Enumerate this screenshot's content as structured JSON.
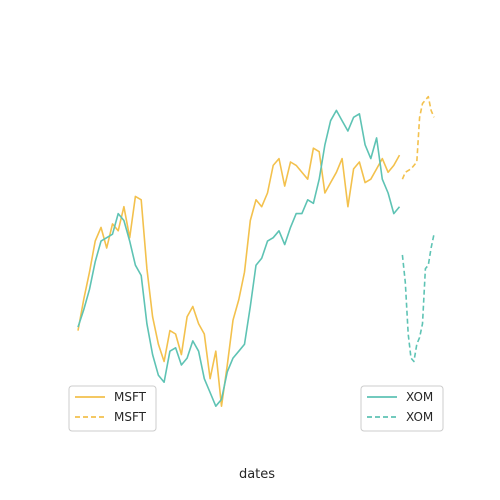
{
  "chart_data": {
    "type": "line",
    "xlabel": "dates",
    "ylabel": "",
    "xlim": [
      0,
      120
    ],
    "ylim": [
      0,
      100
    ],
    "grid": false,
    "axes_visible": false,
    "colors": {
      "MSFT": "#f3c14d",
      "XOM": "#5ec3b4"
    },
    "series": [
      {
        "name": "MSFT",
        "style": "solid",
        "color": "#f3c14d",
        "x": [
          0,
          2,
          4,
          6,
          8,
          10,
          12,
          14,
          16,
          18,
          20,
          22,
          24,
          26,
          28,
          30,
          32,
          34,
          36,
          38,
          40,
          42,
          44,
          46,
          48,
          50,
          52,
          54,
          56,
          58,
          60,
          62,
          64,
          66,
          68,
          70,
          72,
          74,
          76,
          78,
          80,
          82,
          84,
          86,
          88,
          90,
          92,
          94,
          96,
          98,
          100,
          102,
          104,
          106,
          108,
          110,
          112
        ],
        "y": [
          26,
          35,
          43,
          52,
          56,
          50,
          57,
          55,
          62,
          53,
          65,
          64,
          44,
          30,
          22,
          17,
          26,
          25,
          19,
          30,
          33,
          28,
          25,
          12,
          20,
          4,
          16,
          29,
          35,
          43,
          58,
          64,
          62,
          66,
          74,
          76,
          68,
          75,
          74,
          72,
          70,
          79,
          78,
          66,
          69,
          72,
          76,
          62,
          73,
          75,
          69,
          70,
          73,
          76,
          72,
          74,
          77
        ]
      },
      {
        "name": "MSFT",
        "style": "dashed",
        "color": "#f3c14d",
        "x": [
          113,
          114,
          116,
          118,
          119,
          120,
          122,
          123,
          124
        ],
        "y": [
          70,
          72,
          73,
          75,
          88,
          92,
          94,
          90,
          88
        ]
      },
      {
        "name": "XOM",
        "style": "solid",
        "color": "#5ec3b4",
        "x": [
          0,
          2,
          4,
          6,
          8,
          10,
          12,
          14,
          16,
          18,
          20,
          22,
          24,
          26,
          28,
          30,
          32,
          34,
          36,
          38,
          40,
          42,
          44,
          46,
          48,
          50,
          52,
          54,
          56,
          58,
          60,
          62,
          64,
          66,
          68,
          70,
          72,
          74,
          76,
          78,
          80,
          82,
          84,
          86,
          88,
          90,
          92,
          94,
          96,
          98,
          100,
          102,
          104,
          106,
          108,
          110,
          112
        ],
        "y": [
          27,
          32,
          38,
          46,
          52,
          53,
          54,
          60,
          58,
          52,
          45,
          42,
          28,
          19,
          13,
          11,
          20,
          21,
          16,
          18,
          23,
          20,
          12,
          8,
          4,
          6,
          14,
          18,
          20,
          22,
          33,
          45,
          47,
          52,
          53,
          55,
          51,
          56,
          60,
          60,
          64,
          63,
          70,
          80,
          87,
          90,
          87,
          84,
          88,
          89,
          80,
          76,
          82,
          70,
          66,
          60,
          62
        ]
      },
      {
        "name": "XOM",
        "style": "dashed",
        "color": "#5ec3b4",
        "x": [
          113,
          114,
          115,
          116,
          117,
          118,
          119,
          120,
          121,
          122,
          123,
          124
        ],
        "y": [
          48,
          40,
          25,
          18,
          17,
          22,
          24,
          28,
          44,
          45,
          50,
          54
        ]
      }
    ],
    "legends": [
      {
        "location": "lower-left",
        "entries": [
          {
            "label": "MSFT",
            "style": "solid"
          },
          {
            "label": "MSFT",
            "style": "dashed"
          }
        ]
      },
      {
        "location": "lower-right",
        "entries": [
          {
            "label": "XOM",
            "style": "solid"
          },
          {
            "label": "XOM",
            "style": "dashed"
          }
        ]
      }
    ]
  }
}
